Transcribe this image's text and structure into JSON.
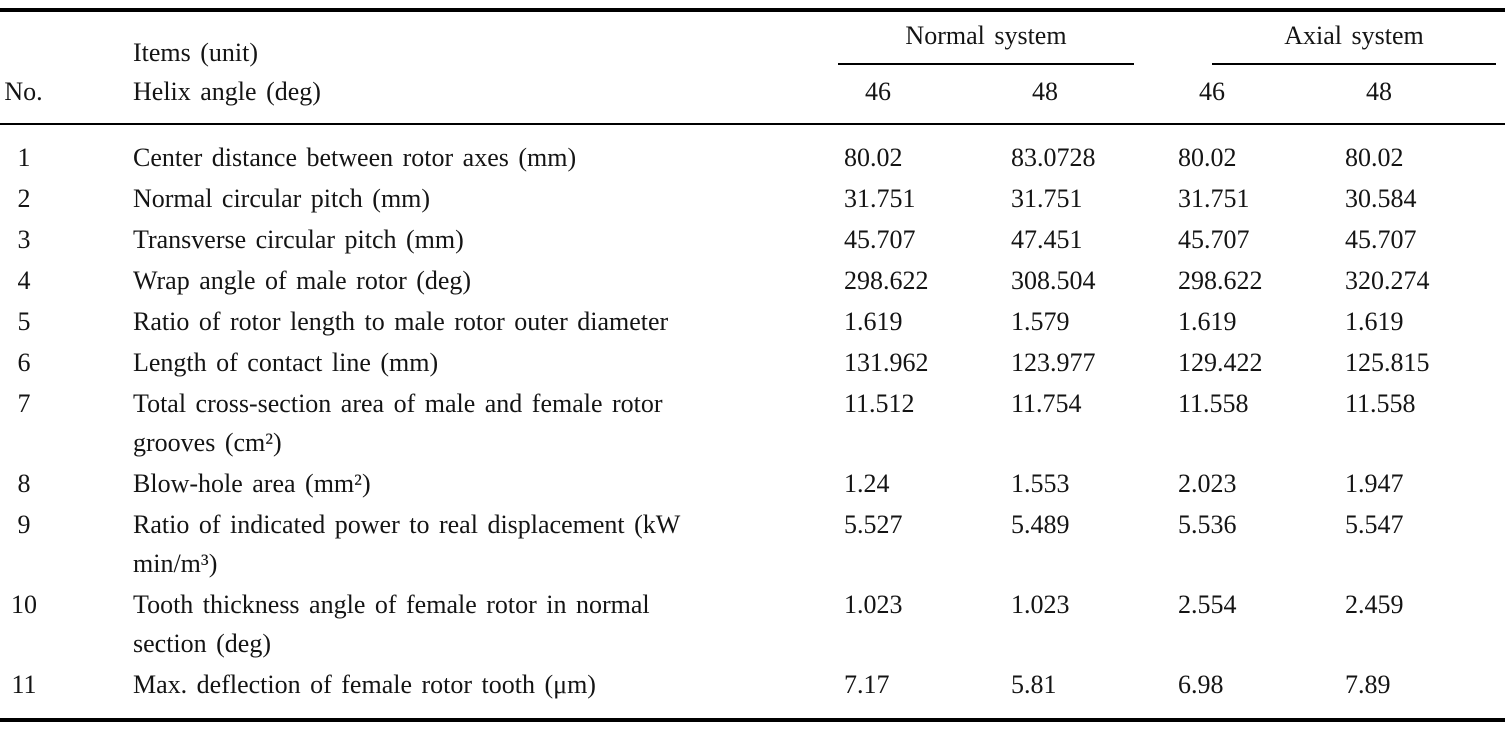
{
  "table": {
    "header": {
      "no_label": "No.",
      "items_line1": "Items (unit)",
      "items_line2": "Helix angle (deg)",
      "groups": [
        {
          "label": "Normal system",
          "subcols": [
            "46",
            "48"
          ]
        },
        {
          "label": "Axial system",
          "subcols": [
            "46",
            "48"
          ]
        }
      ]
    },
    "rows": [
      {
        "no": "1",
        "item": "Center distance between rotor axes (mm)",
        "values": [
          "80.02",
          "83.0728",
          "80.02",
          "80.02"
        ]
      },
      {
        "no": "2",
        "item": "Normal circular pitch (mm)",
        "values": [
          "31.751",
          "31.751",
          "31.751",
          "30.584"
        ]
      },
      {
        "no": "3",
        "item": "Transverse circular pitch (mm)",
        "values": [
          "45.707",
          "47.451",
          "45.707",
          "45.707"
        ]
      },
      {
        "no": "4",
        "item": "Wrap angle of male rotor (deg)",
        "values": [
          "298.622",
          "308.504",
          "298.622",
          "320.274"
        ]
      },
      {
        "no": "5",
        "item": "Ratio of rotor length to male rotor outer diameter",
        "values": [
          "1.619",
          "1.579",
          "1.619",
          "1.619"
        ]
      },
      {
        "no": "6",
        "item": "Length of contact line (mm)",
        "values": [
          "131.962",
          "123.977",
          "129.422",
          "125.815"
        ]
      },
      {
        "no": "7",
        "item": "Total cross-section area of male and female rotor grooves (cm²)",
        "values": [
          "11.512",
          "11.754",
          "11.558",
          "11.558"
        ]
      },
      {
        "no": "8",
        "item": "Blow-hole area (mm²)",
        "values": [
          "1.24",
          "1.553",
          "2.023",
          "1.947"
        ]
      },
      {
        "no": "9",
        "item": "Ratio of indicated power to real displacement (kW min/m³)",
        "values": [
          "5.527",
          "5.489",
          "5.536",
          "5.547"
        ]
      },
      {
        "no": "10",
        "item": "Tooth thickness angle of female rotor in normal section (deg)",
        "values": [
          "1.023",
          "1.023",
          "2.554",
          "2.459"
        ]
      },
      {
        "no": "11",
        "item": "Max. deflection of female rotor tooth (μm)",
        "values": [
          "7.17",
          "5.81",
          "6.98",
          "7.89"
        ]
      }
    ]
  }
}
